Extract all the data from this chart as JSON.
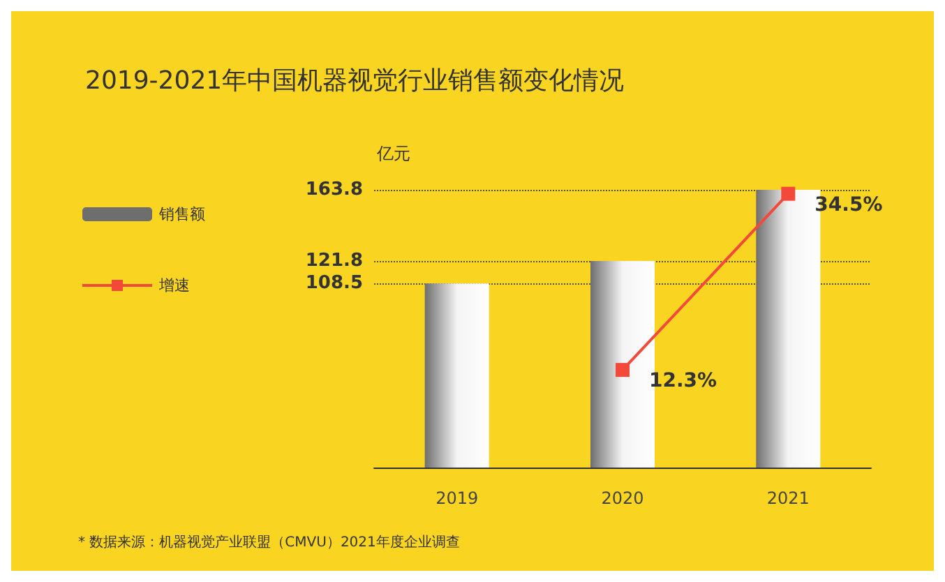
{
  "chart_data": {
    "type": "bar",
    "title": "2019-2021年中国机器视觉行业销售额变化情况",
    "ylabel": "亿元",
    "categories": [
      "2019",
      "2020",
      "2021"
    ],
    "series": [
      {
        "name": "销售额",
        "color": "#6e6e6e",
        "values": [
          108.5,
          121.8,
          163.8
        ]
      },
      {
        "name": "增速",
        "type": "line",
        "axis": "y2",
        "color": "#f2493a",
        "values": [
          null,
          12.3,
          34.5
        ],
        "value_labels": [
          null,
          "12.3%",
          "34.5%"
        ]
      }
    ],
    "ylim": [
      0,
      163.8
    ],
    "yticks": [
      108.5,
      121.8,
      163.8
    ],
    "marker": "square",
    "legend": "left",
    "grid": "y",
    "annotations": [
      "* 数据来源：机器视觉产业联盟（CMVU）2021年度企业调查"
    ]
  }
}
